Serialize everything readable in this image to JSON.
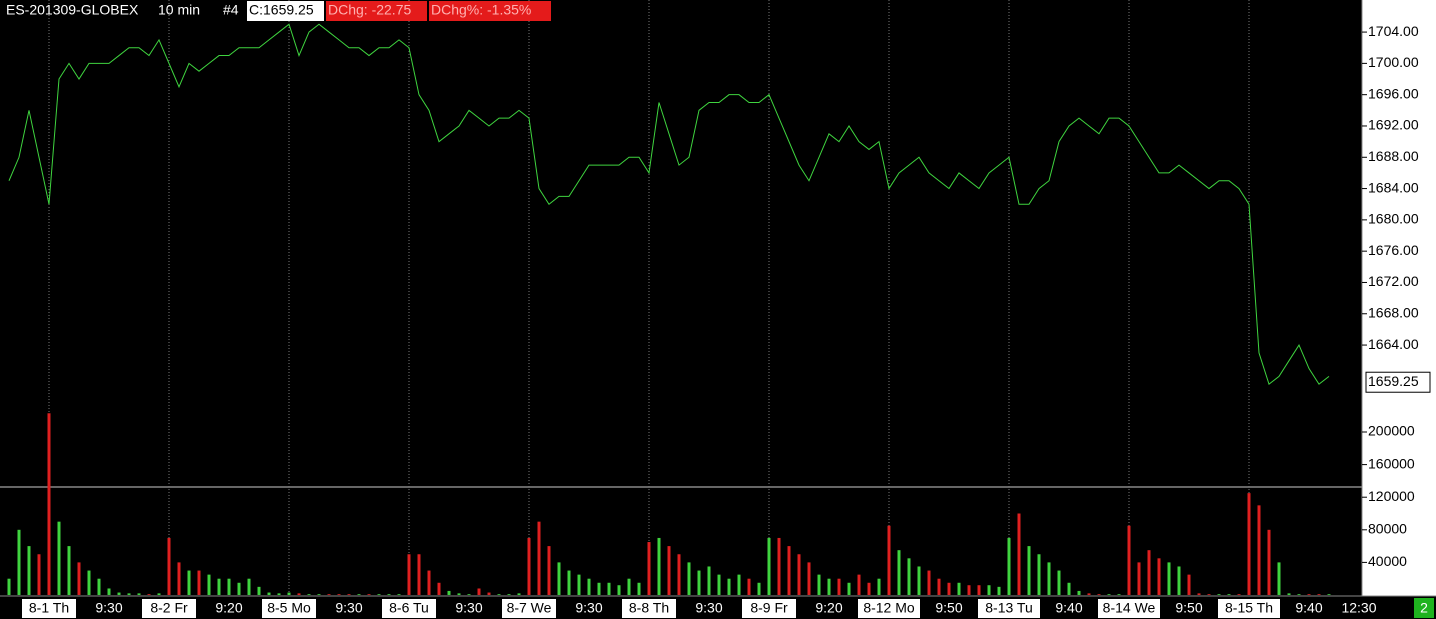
{
  "chart_data": {
    "type": "line",
    "header": {
      "symbol": "ES-201309-GLOBEX",
      "interval": "10 min",
      "id": "#4",
      "close": "C:1659.25",
      "dchg": "DChg: -22.75",
      "dchg_pct": "DChg%: -1.35%"
    },
    "categories": [
      null,
      null,
      null,
      null,
      "8-1 Th",
      null,
      null,
      null,
      null,
      null,
      "9:30",
      null,
      null,
      null,
      null,
      null,
      "8-2 Fr",
      null,
      null,
      null,
      null,
      null,
      "9:20",
      null,
      null,
      null,
      null,
      null,
      "8-5 Mo",
      null,
      null,
      null,
      null,
      null,
      "9:30",
      null,
      null,
      null,
      null,
      null,
      "8-6 Tu",
      null,
      null,
      null,
      null,
      null,
      "9:30",
      null,
      null,
      null,
      null,
      null,
      "8-7 We",
      null,
      null,
      null,
      null,
      null,
      "9:30",
      null,
      null,
      null,
      null,
      null,
      "8-8 Th",
      null,
      null,
      null,
      null,
      null,
      "9:30",
      null,
      null,
      null,
      null,
      null,
      "8-9 Fr",
      null,
      null,
      null,
      null,
      null,
      "9:20",
      null,
      null,
      null,
      null,
      null,
      "8-12 Mo",
      null,
      null,
      null,
      null,
      null,
      "9:50",
      null,
      null,
      null,
      null,
      null,
      "8-13 Tu",
      null,
      null,
      null,
      null,
      null,
      "9:40",
      null,
      null,
      null,
      null,
      null,
      "8-14 We",
      null,
      null,
      null,
      null,
      null,
      "9:50",
      null,
      null,
      null,
      null,
      null,
      "8-15 Th",
      null,
      null,
      null,
      null,
      null,
      "9:40",
      null,
      null,
      null,
      null,
      "12:30"
    ],
    "series": [
      {
        "type": "line",
        "color": "#3fd43f",
        "values": [
          1685,
          1688,
          1694,
          1688,
          1682,
          1698,
          1700,
          1698,
          1700,
          1700,
          1700,
          1701,
          1702,
          1702,
          1701,
          1703,
          1700,
          1697,
          1700,
          1699,
          1700,
          1701,
          1701,
          1702,
          1702,
          1702,
          1703,
          1704,
          1705,
          1701,
          1704,
          1705,
          1704,
          1703,
          1702,
          1702,
          1701,
          1702,
          1702,
          1703,
          1702,
          1696,
          1694,
          1690,
          1691,
          1692,
          1694,
          1693,
          1692,
          1693,
          1693,
          1694,
          1693,
          1684,
          1682,
          1683,
          1683,
          1685,
          1687,
          1687,
          1687,
          1687,
          1688,
          1688,
          1686,
          1695,
          1691,
          1687,
          1688,
          1694,
          1695,
          1695,
          1696,
          1696,
          1695,
          1695,
          1696,
          1693,
          1690,
          1687,
          1685,
          1688,
          1691,
          1690,
          1692,
          1690,
          1689,
          1690,
          1684,
          1686,
          1687,
          1688,
          1686,
          1685,
          1684,
          1686,
          1685,
          1684,
          1686,
          1687,
          1688,
          1682,
          1682,
          1684,
          1685,
          1690,
          1692,
          1693,
          1692,
          1691,
          1693,
          1693,
          1692,
          1690,
          1688,
          1686,
          1686,
          1687,
          1686,
          1685,
          1684,
          1685,
          1685,
          1684,
          1682,
          1663,
          1659,
          1660,
          1662,
          1664,
          1661,
          1659,
          1660,
          null,
          null,
          null
        ]
      },
      {
        "type": "bar",
        "axis": "y2",
        "up_color": "#3fd43f",
        "down_color": "#e02020",
        "values": [
          20000,
          80000,
          60000,
          50000,
          223000,
          90000,
          60000,
          40000,
          30000,
          20000,
          8000,
          3000,
          2000,
          2000,
          1000,
          2000,
          70000,
          40000,
          30000,
          30000,
          25000,
          20000,
          20000,
          15000,
          20000,
          10000,
          3000,
          2000,
          3000,
          2000,
          1000,
          1000,
          1000,
          1000,
          1000,
          1000,
          1000,
          1000,
          1000,
          1000,
          50000,
          50000,
          30000,
          15000,
          5000,
          2000,
          1000,
          8000,
          3000,
          1000,
          1000,
          2000,
          70000,
          90000,
          60000,
          40000,
          30000,
          25000,
          20000,
          15000,
          15000,
          12000,
          20000,
          15000,
          65000,
          70000,
          60000,
          50000,
          40000,
          30000,
          35000,
          25000,
          20000,
          25000,
          20000,
          15000,
          70000,
          70000,
          60000,
          50000,
          40000,
          25000,
          20000,
          20000,
          15000,
          25000,
          15000,
          20000,
          85000,
          55000,
          45000,
          35000,
          30000,
          20000,
          15000,
          15000,
          12000,
          12000,
          12000,
          10000,
          70000,
          100000,
          60000,
          50000,
          40000,
          30000,
          15000,
          5000,
          2000,
          1000,
          1000,
          1000,
          85000,
          40000,
          55000,
          45000,
          40000,
          35000,
          25000,
          2000,
          1000,
          1000,
          1000,
          1000,
          125000,
          110000,
          80000,
          40000,
          2000,
          1000,
          1000,
          1000,
          1000,
          null,
          null,
          null
        ]
      }
    ],
    "ylim": [
      1655.7,
      1708.1
    ],
    "yticks": [
      {
        "value": 1664,
        "label": "1664.00"
      },
      {
        "value": 1668,
        "label": "1668.00"
      },
      {
        "value": 1672,
        "label": "1672.00"
      },
      {
        "value": 1676,
        "label": "1676.00"
      },
      {
        "value": 1680,
        "label": "1680.00"
      },
      {
        "value": 1684,
        "label": "1684.00"
      },
      {
        "value": 1688,
        "label": "1688.00"
      },
      {
        "value": 1692,
        "label": "1692.00"
      },
      {
        "value": 1696,
        "label": "1696.00"
      },
      {
        "value": 1700,
        "label": "1700.00"
      },
      {
        "value": 1704,
        "label": "1704.00"
      }
    ],
    "y2lim": [
      0,
      227000
    ],
    "y2ticks": [
      40000,
      80000,
      120000,
      160000,
      200000
    ],
    "last_value": 1659.25,
    "badge": "2"
  }
}
